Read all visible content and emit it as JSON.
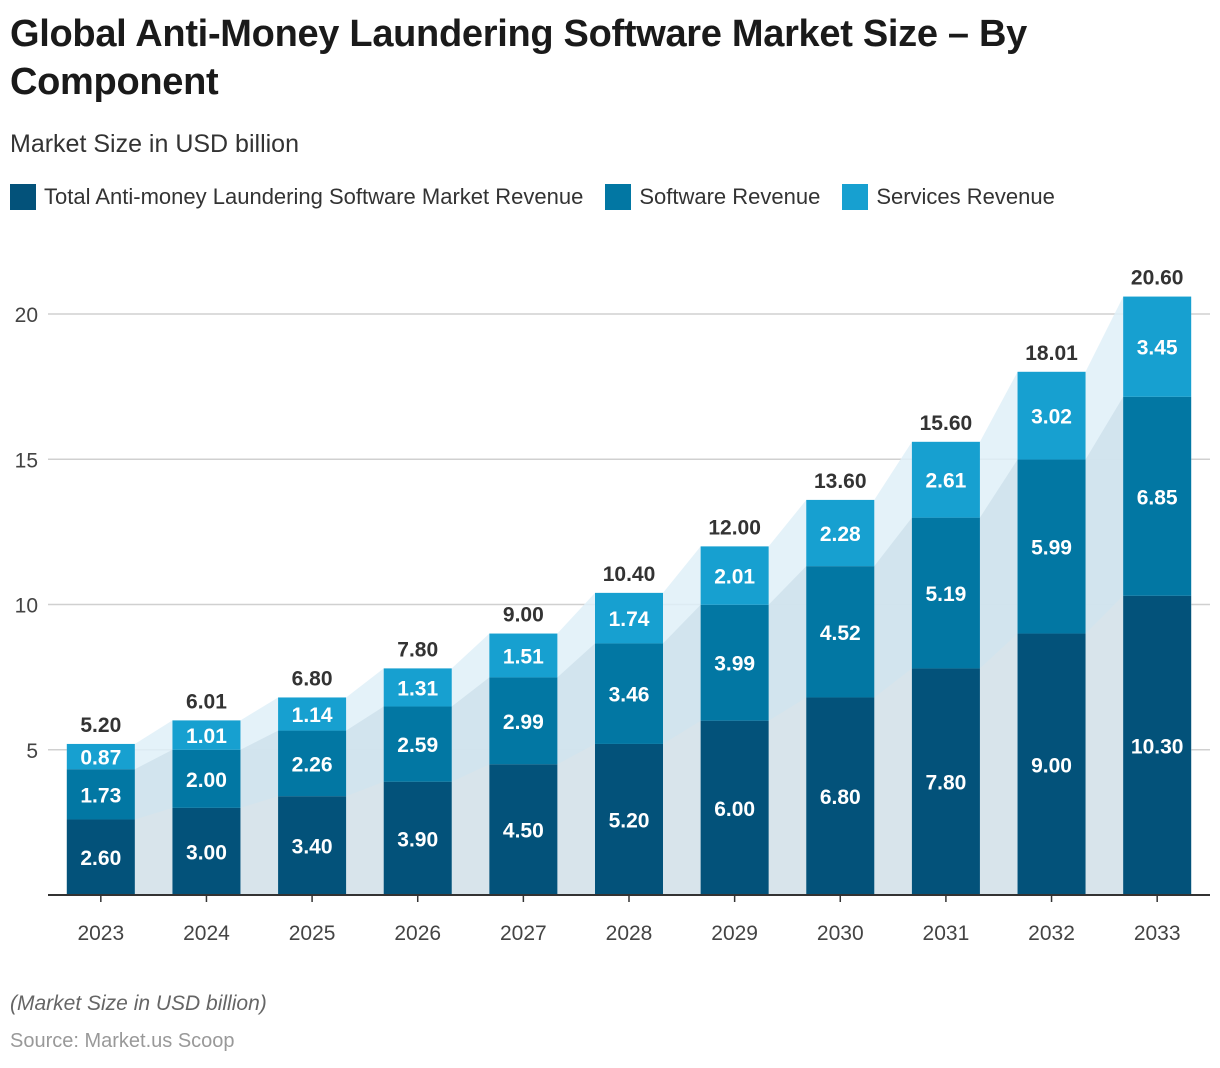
{
  "title": "Global Anti-Money Laundering Software Market Size – By Component",
  "subtitle": "Market Size in USD billion",
  "footnote": "(Market Size in USD billion)",
  "source": "Source: Market.us Scoop",
  "legend": [
    {
      "label": "Total Anti-money Laundering Software Market Revenue",
      "color": "#03527a"
    },
    {
      "label": "Software Revenue",
      "color": "#0277a3"
    },
    {
      "label": "Services Revenue",
      "color": "#17a0d0"
    }
  ],
  "chart_data": {
    "type": "bar",
    "stacked": true,
    "categories": [
      "2023",
      "2024",
      "2025",
      "2026",
      "2027",
      "2028",
      "2029",
      "2030",
      "2031",
      "2032",
      "2033"
    ],
    "series": [
      {
        "name": "Total Anti-money Laundering Software Market Revenue",
        "color": "#03527a",
        "values": [
          2.6,
          3.0,
          3.4,
          3.9,
          4.5,
          5.2,
          6.0,
          6.8,
          7.8,
          9.0,
          10.3
        ],
        "labels": [
          "2.60",
          "3.00",
          "3.40",
          "3.90",
          "4.50",
          "5.20",
          "6.00",
          "6.80",
          "7.80",
          "9.00",
          "10.30"
        ]
      },
      {
        "name": "Software Revenue",
        "color": "#0277a3",
        "values": [
          1.73,
          2.0,
          2.26,
          2.59,
          2.99,
          3.46,
          3.99,
          4.52,
          5.19,
          5.99,
          6.85
        ],
        "labels": [
          "1.73",
          "2.00",
          "2.26",
          "2.59",
          "2.99",
          "3.46",
          "3.99",
          "4.52",
          "5.19",
          "5.99",
          "6.85"
        ]
      },
      {
        "name": "Services Revenue",
        "color": "#17a0d0",
        "values": [
          0.87,
          1.01,
          1.14,
          1.31,
          1.51,
          1.74,
          2.01,
          2.28,
          2.61,
          3.02,
          3.45
        ],
        "labels": [
          "0.87",
          "1.01",
          "1.14",
          "1.31",
          "1.51",
          "1.74",
          "2.01",
          "2.28",
          "2.61",
          "3.02",
          "3.45"
        ]
      }
    ],
    "totals": [
      "5.20",
      "6.01",
      "6.80",
      "7.80",
      "9.00",
      "10.40",
      "12.00",
      "13.60",
      "15.60",
      "18.01",
      "20.60"
    ],
    "yticks": [
      5,
      10,
      15,
      20
    ],
    "ylim": [
      0,
      21.3
    ],
    "grid": true,
    "legend_position": "top-left"
  }
}
